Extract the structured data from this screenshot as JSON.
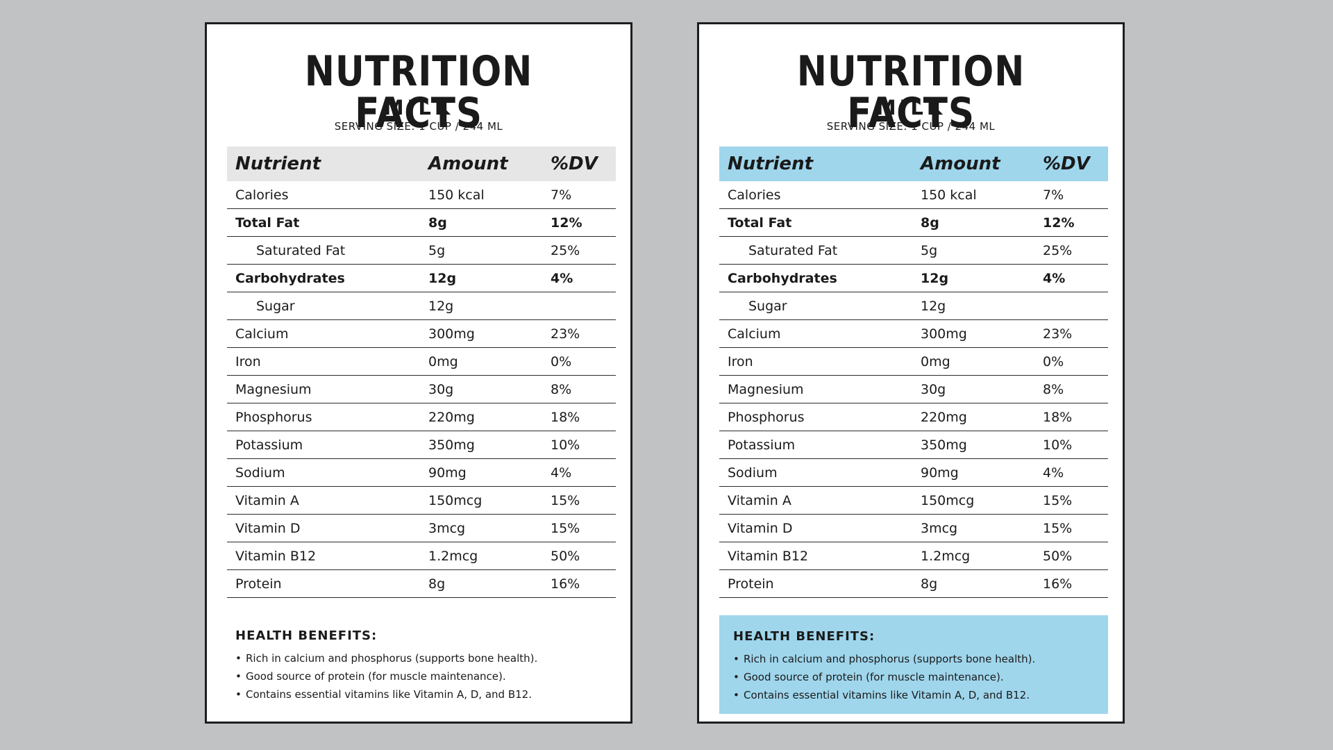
{
  "labels": [
    {
      "title": "NUTRITION FACTS",
      "product": "MILK",
      "serving": "SERVING SIZE: 1 CUP / 244 ML",
      "header": {
        "nutrient": "Nutrient",
        "amount": "Amount",
        "dv": "%DV"
      },
      "header_color": "#e6e6e6",
      "rows": [
        {
          "nutrient": "Calories",
          "amount": "150 kcal",
          "dv": "7%"
        },
        {
          "nutrient": "Total Fat",
          "amount": "8g",
          "dv": "12%"
        },
        {
          "nutrient": "Saturated Fat",
          "amount": "5g",
          "dv": "25%"
        },
        {
          "nutrient": "Carbohydrates",
          "amount": "12g",
          "dv": "4%"
        },
        {
          "nutrient": "Sugar",
          "amount": "12g",
          "dv": ""
        },
        {
          "nutrient": "Calcium",
          "amount": "300mg",
          "dv": "23%"
        },
        {
          "nutrient": "Iron",
          "amount": "0mg",
          "dv": "0%"
        },
        {
          "nutrient": "Magnesium",
          "amount": "30g",
          "dv": "8%"
        },
        {
          "nutrient": "Phosphorus",
          "amount": "220mg",
          "dv": "18%"
        },
        {
          "nutrient": "Potassium",
          "amount": "350mg",
          "dv": "10%"
        },
        {
          "nutrient": "Sodium",
          "amount": "90mg",
          "dv": "4%"
        },
        {
          "nutrient": "Vitamin A",
          "amount": "150mcg",
          "dv": "15%"
        },
        {
          "nutrient": "Vitamin D",
          "amount": "3mcg",
          "dv": "15%"
        },
        {
          "nutrient": "Vitamin B12",
          "amount": "1.2mcg",
          "dv": "50%"
        },
        {
          "nutrient": "Protein",
          "amount": "8g",
          "dv": "16%"
        }
      ],
      "benefits": {
        "heading": "HEALTH BENEFITS:",
        "items": [
          "Rich in calcium and phosphorus (supports bone health).",
          "Good source of protein (for muscle maintenance).",
          "Contains essential vitamins like Vitamin A, D, and B12."
        ]
      }
    },
    {
      "title": "NUTRITION FACTS",
      "product": "MILK",
      "serving": "SERVING SIZE: 1 CUP / 244 ML",
      "header": {
        "nutrient": "Nutrient",
        "amount": "Amount",
        "dv": "%DV"
      },
      "header_color": "#9fd6ec",
      "rows": [
        {
          "nutrient": "Calories",
          "amount": "150 kcal",
          "dv": "7%"
        },
        {
          "nutrient": "Total Fat",
          "amount": "8g",
          "dv": "12%"
        },
        {
          "nutrient": "Saturated Fat",
          "amount": "5g",
          "dv": "25%"
        },
        {
          "nutrient": "Carbohydrates",
          "amount": "12g",
          "dv": "4%"
        },
        {
          "nutrient": "Sugar",
          "amount": "12g",
          "dv": ""
        },
        {
          "nutrient": "Calcium",
          "amount": "300mg",
          "dv": "23%"
        },
        {
          "nutrient": "Iron",
          "amount": "0mg",
          "dv": "0%"
        },
        {
          "nutrient": "Magnesium",
          "amount": "30g",
          "dv": "8%"
        },
        {
          "nutrient": "Phosphorus",
          "amount": "220mg",
          "dv": "18%"
        },
        {
          "nutrient": "Potassium",
          "amount": "350mg",
          "dv": "10%"
        },
        {
          "nutrient": "Sodium",
          "amount": "90mg",
          "dv": "4%"
        },
        {
          "nutrient": "Vitamin A",
          "amount": "150mcg",
          "dv": "15%"
        },
        {
          "nutrient": "Vitamin D",
          "amount": "3mcg",
          "dv": "15%"
        },
        {
          "nutrient": "Vitamin B12",
          "amount": "1.2mcg",
          "dv": "50%"
        },
        {
          "nutrient": "Protein",
          "amount": "8g",
          "dv": "16%"
        }
      ],
      "benefits": {
        "heading": "HEALTH BENEFITS:",
        "items": [
          "Rich in calcium and phosphorus (supports bone health).",
          "Good source of protein (for muscle maintenance).",
          "Contains essential vitamins like Vitamin A, D, and B12."
        ]
      }
    }
  ],
  "colors": {
    "background": "#c1c2c4",
    "accent_blue": "#9fd6ec",
    "header_gray": "#e6e6e6"
  }
}
